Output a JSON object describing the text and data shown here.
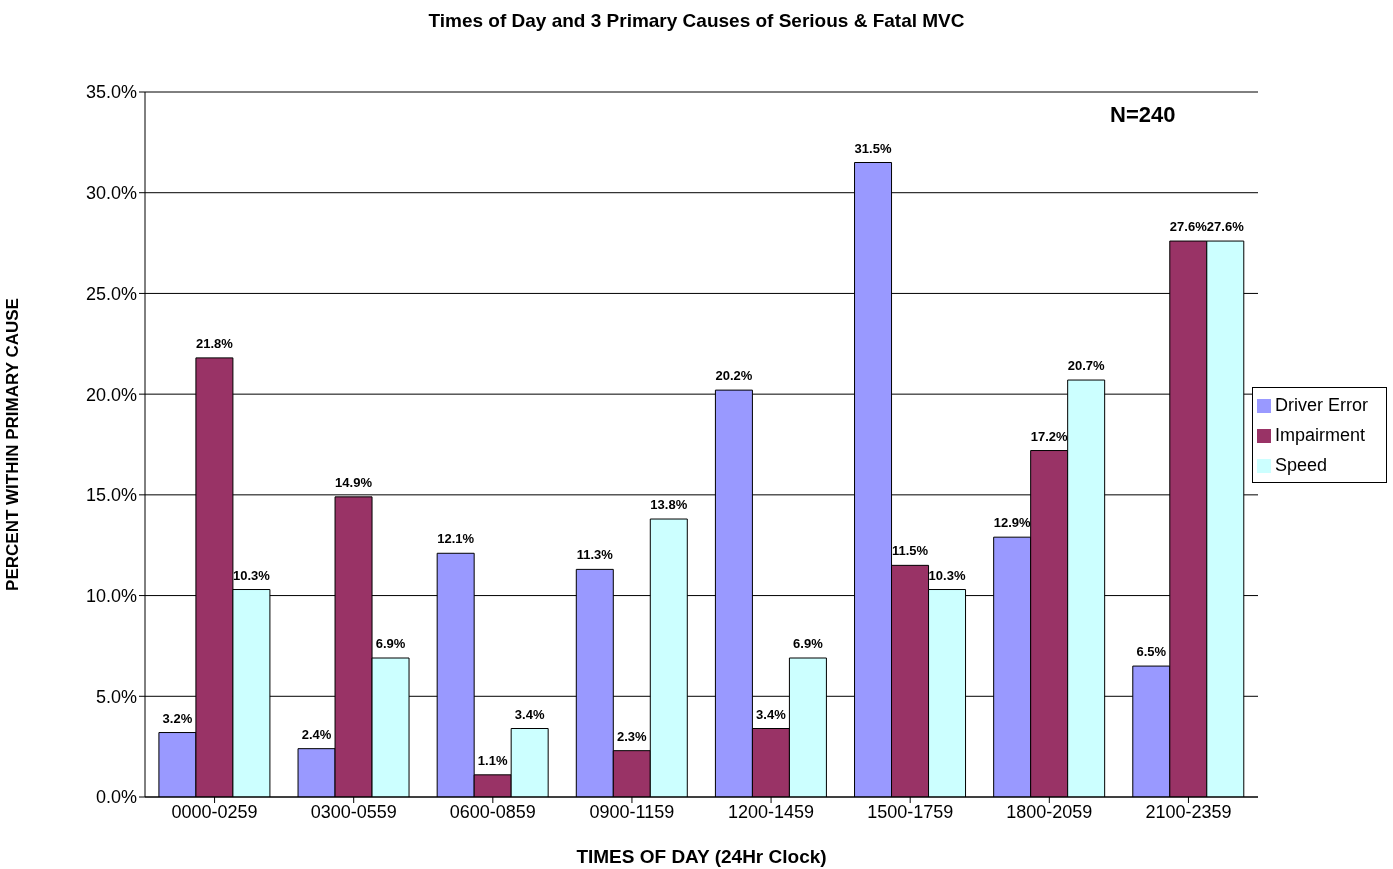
{
  "chart_data": {
    "type": "bar",
    "title": "Times of Day and 3 Primary Causes of Serious & Fatal MVC",
    "xlabel": "TIMES OF DAY (24Hr Clock)",
    "ylabel": "PERCENT WITHIN PRIMARY CAUSE",
    "categories": [
      "0000-0259",
      "0300-0559",
      "0600-0859",
      "0900-1159",
      "1200-1459",
      "1500-1759",
      "1800-2059",
      "2100-2359"
    ],
    "series": [
      {
        "name": "Driver Error",
        "color": "#9999ff",
        "values": [
          3.2,
          2.4,
          12.1,
          11.3,
          20.2,
          31.5,
          12.9,
          6.5
        ],
        "value_labels": [
          "3.2%",
          "2.4%",
          "12.1%",
          "11.3%",
          "20.2%",
          "31.5%",
          "12.9%",
          "6.5%"
        ]
      },
      {
        "name": "Impairment",
        "color": "#993366",
        "values": [
          21.8,
          14.9,
          1.1,
          2.3,
          3.4,
          11.5,
          17.2,
          27.6
        ],
        "value_labels": [
          "21.8%",
          "14.9%",
          "1.1%",
          "2.3%",
          "3.4%",
          "11.5%",
          "17.2%",
          "27.6%"
        ]
      },
      {
        "name": "Speed",
        "color": "#ccffff",
        "values": [
          10.3,
          6.9,
          3.4,
          13.8,
          6.9,
          10.3,
          20.7,
          27.6
        ],
        "value_labels": [
          "10.3%",
          "6.9%",
          "3.4%",
          "13.8%",
          "6.9%",
          "10.3%",
          "20.7%",
          "27.6%"
        ]
      }
    ],
    "ylim": [
      0,
      35
    ],
    "yticks": [
      {
        "value": 0,
        "label": "0.0%"
      },
      {
        "value": 5,
        "label": "5.0%"
      },
      {
        "value": 10,
        "label": "10.0%"
      },
      {
        "value": 15,
        "label": "15.0%"
      },
      {
        "value": 20,
        "label": "20.0%"
      },
      {
        "value": 25,
        "label": "25.0%"
      },
      {
        "value": 30,
        "label": "30.0%"
      },
      {
        "value": 35,
        "label": "35.0%"
      }
    ],
    "grid": "y",
    "legend": "right",
    "annotations": [
      "N=240"
    ]
  }
}
